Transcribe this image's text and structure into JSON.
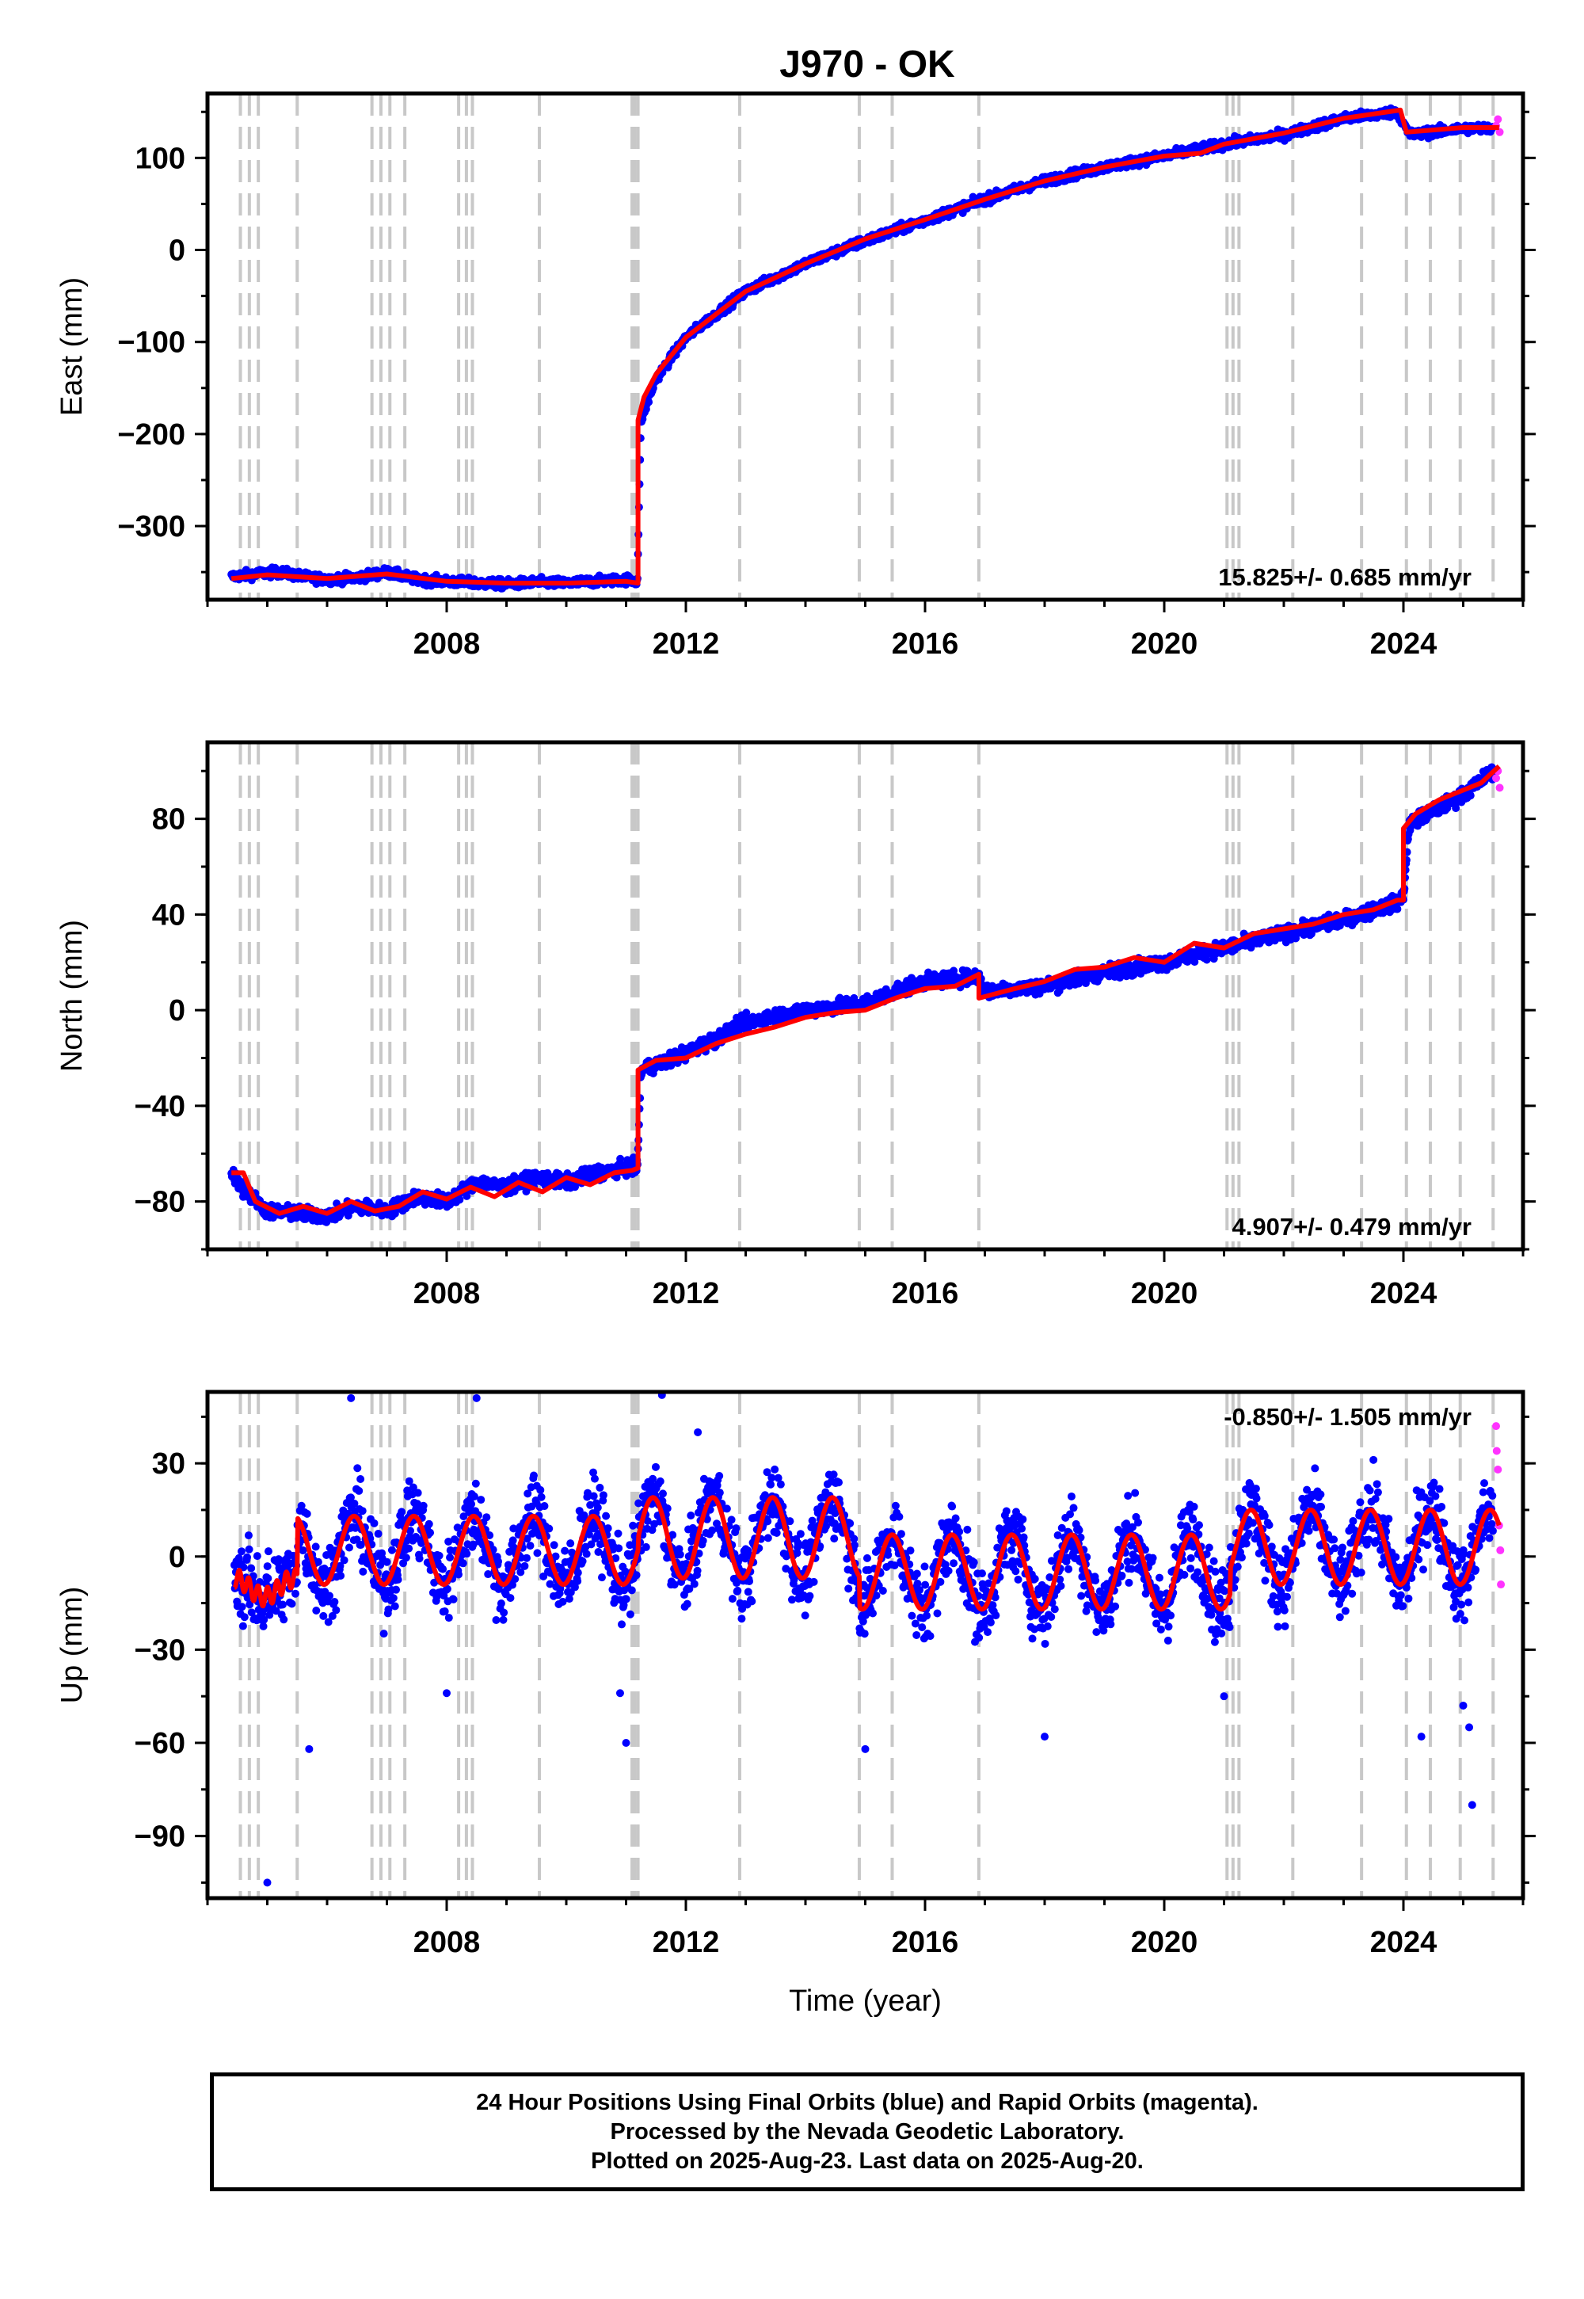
{
  "title": "J970 - OK",
  "footer": {
    "line1": "24 Hour Positions Using Final Orbits (blue) and Rapid Orbits (magenta).",
    "line2": "Processed by the Nevada Geodetic Laboratory.",
    "line3": "Plotted on 2025-Aug-23. Last data on 2025-Aug-20."
  },
  "colors": {
    "final_orbits": "#0000ff",
    "rapid_orbits": "#ff33ff",
    "model": "#ff0000",
    "event_lines": "#c8c8c8",
    "frame": "#000000"
  },
  "chart_data": [
    {
      "type": "scatter",
      "panel": "east",
      "ylabel": "East (mm)",
      "xlabel": "",
      "xlim": [
        2004.0,
        2026.0
      ],
      "ylim": [
        -380,
        170
      ],
      "xticks": [
        2008,
        2012,
        2016,
        2020,
        2024
      ],
      "yticks": [
        100,
        0,
        -100,
        -200,
        -300
      ],
      "ytick_labels": [
        "100",
        "0",
        "−100",
        "−200",
        "−300"
      ],
      "xtick_labels": [
        "2008",
        "2012",
        "2016",
        "2020",
        "2024"
      ],
      "rate_label": "15.825+/- 0.685 mm/yr",
      "rate_position": "bottom-right",
      "grid": false,
      "equipment_change_years": [
        2004.55,
        2004.7,
        2004.85,
        2005.5,
        2006.75,
        2006.9,
        2007.05,
        2007.3,
        2008.2,
        2008.33,
        2008.43,
        2009.55,
        2011.1,
        2011.15,
        2011.2,
        2012.9,
        2014.9,
        2015.45,
        2016.9,
        2021.05,
        2021.15,
        2021.25,
        2022.15,
        2023.3,
        2024.05,
        2024.45,
        2024.95,
        2025.5
      ],
      "series": [
        {
          "name": "Final Orbits",
          "style": "points",
          "x": [
            2004.4,
            2004.8,
            2005.2,
            2005.6,
            2006.0,
            2006.5,
            2007.0,
            2007.5,
            2008.0,
            2008.5,
            2009.0,
            2009.5,
            2010.0,
            2010.5,
            2011.0,
            2011.19,
            2011.25,
            2011.5,
            2012.0,
            2012.5,
            2013.0,
            2014.0,
            2015.0,
            2016.0,
            2017.0,
            2018.0,
            2019.0,
            2020.0,
            2021.0,
            2022.0,
            2023.0,
            2023.9,
            2024.1,
            2025.0,
            2025.5
          ],
          "y": [
            -355,
            -352,
            -350,
            -355,
            -358,
            -356,
            -350,
            -358,
            -360,
            -362,
            -363,
            -361,
            -362,
            -360,
            -358,
            -360,
            -185,
            -140,
            -95,
            -70,
            -45,
            -15,
            10,
            32,
            55,
            75,
            90,
            102,
            115,
            125,
            143,
            150,
            125,
            132,
            132
          ],
          "spread": 5
        },
        {
          "name": "Rapid Orbits",
          "style": "points",
          "x": [
            2025.55,
            2025.58,
            2025.61
          ],
          "y": [
            135,
            142,
            128
          ],
          "spread": 3
        },
        {
          "name": "Model",
          "style": "line",
          "x": [
            2004.4,
            2005.0,
            2006.0,
            2007.0,
            2008.0,
            2009.0,
            2010.0,
            2011.0,
            2011.2,
            2011.2,
            2011.3,
            2011.5,
            2012.0,
            2012.5,
            2013.0,
            2014.0,
            2015.0,
            2016.0,
            2017.0,
            2018.0,
            2019.0,
            2020.0,
            2020.6,
            2021.0,
            2022.0,
            2023.0,
            2023.95,
            2024.05,
            2025.0,
            2025.6
          ],
          "y": [
            -357,
            -353,
            -357,
            -352,
            -360,
            -362,
            -362,
            -360,
            -362,
            -185,
            -160,
            -135,
            -95,
            -70,
            -45,
            -15,
            12,
            33,
            55,
            75,
            90,
            102,
            105,
            115,
            127,
            143,
            152,
            128,
            133,
            133
          ]
        }
      ]
    },
    {
      "type": "scatter",
      "panel": "north",
      "ylabel": "North (mm)",
      "xlabel": "",
      "xlim": [
        2004.0,
        2026.0
      ],
      "ylim": [
        -100,
        112
      ],
      "xticks": [
        2008,
        2012,
        2016,
        2020,
        2024
      ],
      "yticks": [
        80,
        40,
        0,
        -40,
        -80
      ],
      "ytick_labels": [
        "80",
        "40",
        "0",
        "−40",
        "−80"
      ],
      "xtick_labels": [
        "2008",
        "2012",
        "2016",
        "2020",
        "2024"
      ],
      "rate_label": "4.907+/- 0.479 mm/yr",
      "rate_position": "bottom-right",
      "grid": false,
      "equipment_change_years": [
        2004.55,
        2004.7,
        2004.85,
        2005.5,
        2006.75,
        2006.9,
        2007.05,
        2007.3,
        2008.2,
        2008.33,
        2008.43,
        2009.55,
        2011.1,
        2011.15,
        2011.2,
        2012.9,
        2014.9,
        2015.45,
        2016.9,
        2021.05,
        2021.15,
        2021.25,
        2022.15,
        2023.3,
        2024.05,
        2024.45,
        2024.95,
        2025.5
      ],
      "series": [
        {
          "name": "Final Orbits",
          "style": "points",
          "x": [
            2004.4,
            2004.6,
            2005.0,
            2005.5,
            2006.0,
            2006.5,
            2007.0,
            2007.5,
            2008.0,
            2008.5,
            2009.0,
            2009.5,
            2010.0,
            2010.5,
            2011.0,
            2011.19,
            2011.25,
            2011.6,
            2012.0,
            2012.5,
            2013.0,
            2014.0,
            2015.0,
            2015.5,
            2016.0,
            2016.9,
            2017.0,
            2018.0,
            2019.0,
            2020.0,
            2021.0,
            2022.0,
            2023.0,
            2023.9,
            2024.0,
            2024.1,
            2025.0,
            2025.5
          ],
          "y": [
            -68,
            -75,
            -84,
            -85,
            -86,
            -82,
            -84,
            -78,
            -80,
            -72,
            -74,
            -70,
            -72,
            -68,
            -66,
            -66,
            -25,
            -22,
            -18,
            -12,
            -5,
            0,
            3,
            8,
            12,
            14,
            8,
            10,
            16,
            20,
            26,
            32,
            38,
            45,
            48,
            78,
            90,
            100
          ],
          "spread": 3
        },
        {
          "name": "Rapid Orbits",
          "style": "points",
          "x": [
            2025.55,
            2025.58,
            2025.61
          ],
          "y": [
            97,
            100,
            93
          ],
          "spread": 2
        },
        {
          "name": "Model",
          "style": "line",
          "x": [
            2004.4,
            2004.6,
            2004.8,
            2005.2,
            2005.6,
            2006.0,
            2006.4,
            2006.8,
            2007.2,
            2007.6,
            2008.0,
            2008.4,
            2008.8,
            2009.2,
            2009.6,
            2010.0,
            2010.4,
            2010.8,
            2011.1,
            2011.2,
            2011.2,
            2011.5,
            2012.0,
            2012.5,
            2013.0,
            2013.5,
            2014.0,
            2014.5,
            2015.0,
            2015.5,
            2016.0,
            2016.5,
            2016.9,
            2016.9,
            2017.5,
            2018.0,
            2018.5,
            2019.0,
            2019.5,
            2020.0,
            2020.5,
            2021.0,
            2021.5,
            2022.0,
            2022.5,
            2023.0,
            2023.5,
            2023.9,
            2024.0,
            2024.0,
            2024.2,
            2024.6,
            2025.0,
            2025.3,
            2025.6
          ],
          "y": [
            -68,
            -68,
            -80,
            -85,
            -82,
            -85,
            -80,
            -84,
            -82,
            -76,
            -79,
            -74,
            -78,
            -72,
            -76,
            -70,
            -73,
            -68,
            -67,
            -66,
            -25,
            -21,
            -20,
            -14,
            -10,
            -7,
            -3,
            -1,
            0,
            5,
            9,
            10,
            15,
            5,
            9,
            12,
            17,
            18,
            22,
            20,
            28,
            26,
            32,
            34,
            36,
            40,
            42,
            46,
            46,
            76,
            82,
            88,
            92,
            95,
            102
          ]
        }
      ]
    },
    {
      "type": "scatter",
      "panel": "up",
      "ylabel": "Up (mm)",
      "xlabel": "Time (year)",
      "xlim": [
        2004.0,
        2026.0
      ],
      "ylim": [
        -110,
        53
      ],
      "xticks": [
        2008,
        2012,
        2016,
        2020,
        2024
      ],
      "yticks": [
        30,
        0,
        -30,
        -60,
        -90
      ],
      "ytick_labels": [
        "30",
        "0",
        "−30",
        "−60",
        "−90"
      ],
      "xtick_labels": [
        "2008",
        "2012",
        "2016",
        "2020",
        "2024"
      ],
      "rate_label": "-0.850+/- 1.505 mm/yr",
      "rate_position": "top-right",
      "grid": false,
      "equipment_change_years": [
        2004.55,
        2004.7,
        2004.85,
        2005.5,
        2006.75,
        2006.9,
        2007.05,
        2007.3,
        2008.2,
        2008.33,
        2008.43,
        2009.55,
        2011.1,
        2011.15,
        2011.2,
        2012.9,
        2014.9,
        2015.45,
        2016.9,
        2021.05,
        2021.15,
        2021.25,
        2022.15,
        2023.3,
        2024.05,
        2024.45,
        2024.95,
        2025.5
      ],
      "series": [
        {
          "name": "Final Orbits",
          "style": "points",
          "model_driven": true,
          "spread": 12,
          "outliers": [
            [
              2005.0,
              -105
            ],
            [
              2006.4,
              51
            ],
            [
              2008.5,
              51
            ],
            [
              2011.6,
              52
            ],
            [
              2008.0,
              -44
            ],
            [
              2011.0,
              -60
            ],
            [
              2005.7,
              -62
            ],
            [
              2015.0,
              -62
            ],
            [
              2018.0,
              -58
            ],
            [
              2021.0,
              -45
            ],
            [
              2024.3,
              -58
            ],
            [
              2025.0,
              -48
            ],
            [
              2025.1,
              -55
            ],
            [
              2025.15,
              -80
            ],
            [
              2010.9,
              -44
            ],
            [
              2012.2,
              40
            ]
          ]
        },
        {
          "name": "Rapid Orbits",
          "style": "points",
          "x": [
            2025.55,
            2025.56,
            2025.58,
            2025.6,
            2025.62,
            2025.63
          ],
          "y": [
            42,
            34,
            28,
            10,
            2,
            -9
          ],
          "spread": 0
        },
        {
          "name": "Model",
          "style": "line",
          "seasonal_amplitude_by_segment": [
            {
              "x0": 2004.4,
              "x1": 2005.5,
              "offset": -10,
              "amp": 3,
              "noisy": true
            },
            {
              "x0": 2005.5,
              "x1": 2011.2,
              "offset": 2,
              "amp": 11
            },
            {
              "x0": 2011.2,
              "x1": 2014.9,
              "offset": 6,
              "amp": 13
            },
            {
              "x0": 2014.9,
              "x1": 2021.1,
              "offset": -5,
              "amp": 12
            },
            {
              "x0": 2021.1,
              "x1": 2025.6,
              "offset": 3,
              "amp": 12
            }
          ]
        }
      ]
    }
  ]
}
